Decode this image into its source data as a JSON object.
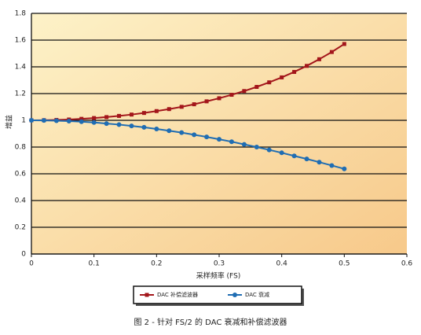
{
  "chart_data": {
    "type": "line",
    "x": [
      0,
      0.02,
      0.04,
      0.06,
      0.08,
      0.1,
      0.12,
      0.14,
      0.16,
      0.18,
      0.2,
      0.22,
      0.24,
      0.26,
      0.28,
      0.3,
      0.32,
      0.34,
      0.36,
      0.38,
      0.4,
      0.42,
      0.44,
      0.46,
      0.48,
      0.5
    ],
    "series": [
      {
        "name": "DAC 补偿滤波器",
        "color": "#a3161b",
        "marker": "square",
        "values": [
          1,
          1.001,
          1.003,
          1.006,
          1.011,
          1.017,
          1.024,
          1.033,
          1.043,
          1.055,
          1.069,
          1.084,
          1.101,
          1.12,
          1.142,
          1.165,
          1.191,
          1.219,
          1.25,
          1.284,
          1.321,
          1.362,
          1.407,
          1.457,
          1.511,
          1.571
        ]
      },
      {
        "name": "DAC 衰减",
        "color": "#1f6db3",
        "marker": "circle",
        "values": [
          1,
          0.999,
          0.997,
          0.994,
          0.99,
          0.984,
          0.976,
          0.968,
          0.958,
          0.948,
          0.935,
          0.922,
          0.908,
          0.892,
          0.876,
          0.858,
          0.84,
          0.82,
          0.8,
          0.779,
          0.757,
          0.734,
          0.711,
          0.687,
          0.662,
          0.637
        ]
      }
    ],
    "xlim": [
      0,
      0.6
    ],
    "xticks": [
      0,
      0.1,
      0.2,
      0.3,
      0.4,
      0.5,
      0.6
    ],
    "ylim": [
      0,
      1.8
    ],
    "yticks": [
      0,
      0.2,
      0.4,
      0.6,
      0.8,
      1,
      1.2,
      1.4,
      1.6,
      1.8
    ],
    "grid": true,
    "x_label": "采样频率 (FS)",
    "y_label": "增益",
    "caption": "图 2 - 针对 FS/2 的 DAC 衰减和补偿滤波器"
  }
}
